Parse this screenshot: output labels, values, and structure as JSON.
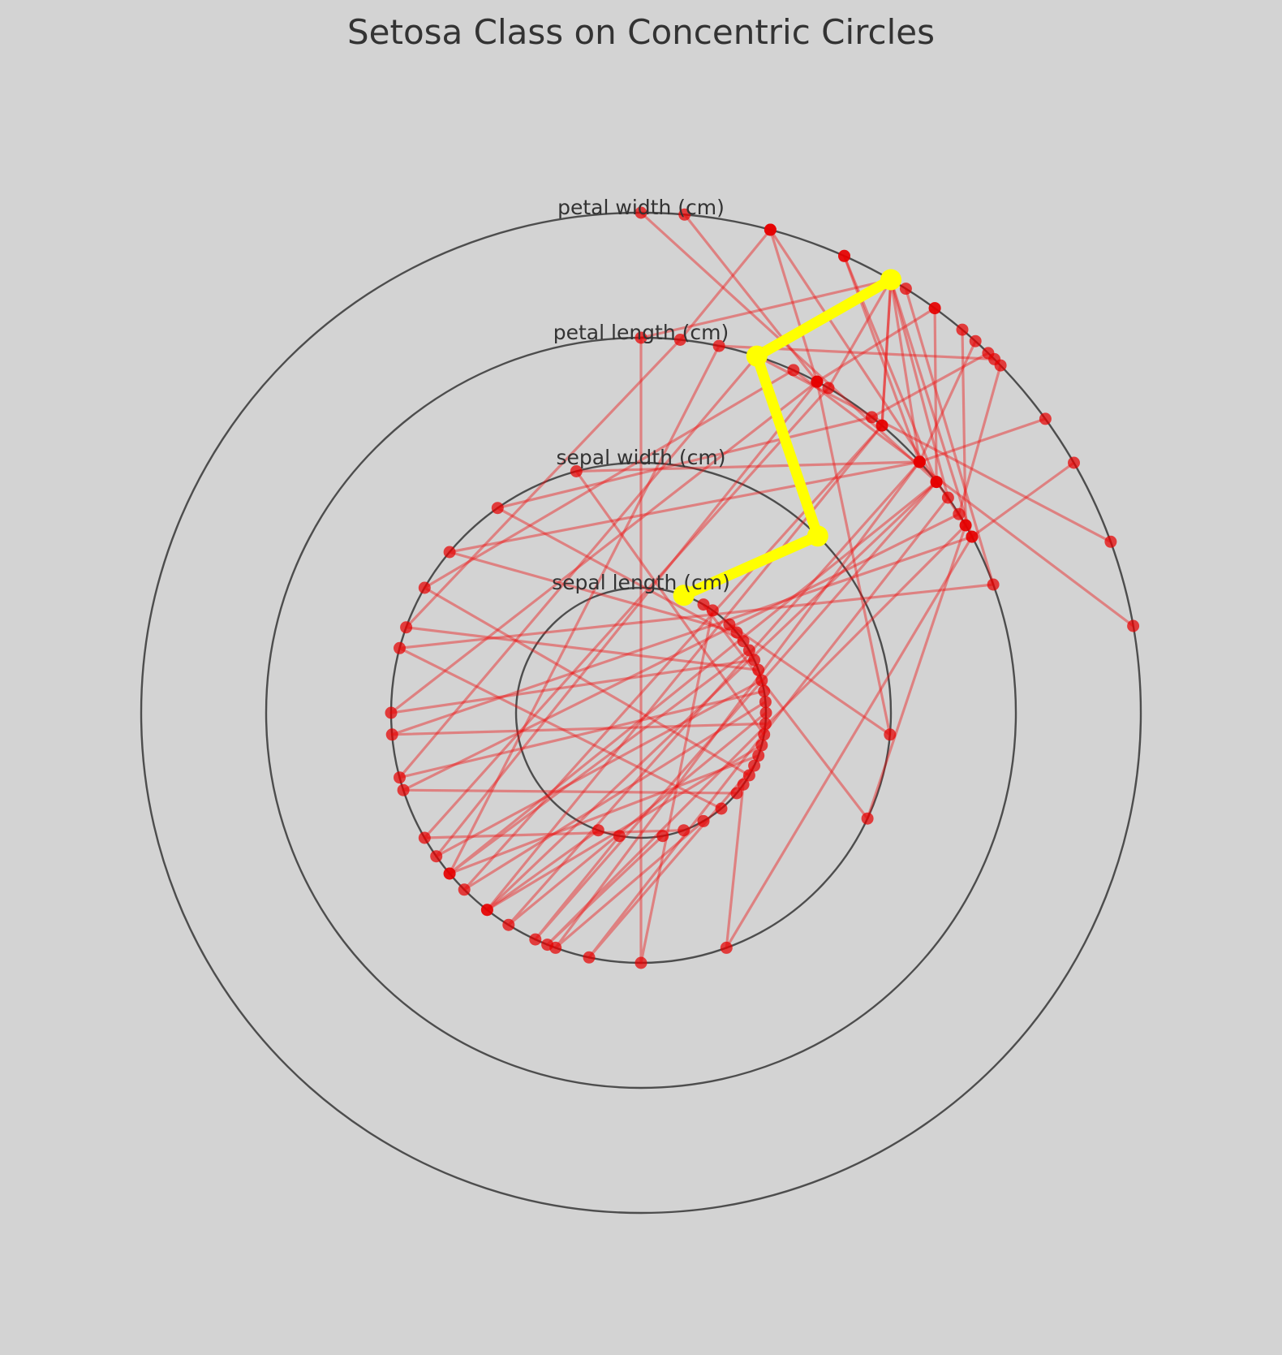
{
  "chart_data": {
    "type": "concentric-circles",
    "title": "Setosa Class on Concentric Circles",
    "circle_labels": [
      "sepal length (cm)",
      "sepal width (cm)",
      "petal length (cm)",
      "petal width (cm)"
    ],
    "angle_convention": "degrees clockwise from the top (12 o'clock)",
    "colors": {
      "background": "#d3d3d3",
      "circle": "#4d4d4d",
      "polyline": "#ee1111",
      "point": "#e60000",
      "highlight": "#ffff00",
      "text": "#333333"
    },
    "series": [
      {
        "angles": [
          30,
          115,
          60,
          40
        ]
      },
      {
        "angles": [
          45,
          95,
          28,
          15
        ]
      },
      {
        "angles": [
          60,
          230,
          52,
          24
        ]
      },
      {
        "angles": [
          75,
          235,
          28,
          36
        ]
      },
      {
        "angles": [
          90,
          212,
          48,
          54
        ]
      },
      {
        "angles": [
          105,
          218,
          52,
          36
        ]
      },
      {
        "angles": [
          115,
          192,
          55,
          30
        ]
      },
      {
        "angles": [
          130,
          252,
          58,
          46
        ]
      },
      {
        "angles": [
          150,
          200,
          48,
          42
        ]
      },
      {
        "angles": [
          160,
          240,
          30,
          30
        ]
      },
      {
        "angles": [
          170,
          202,
          60,
          15
        ]
      },
      {
        "angles": [
          95,
          265,
          62,
          60
        ]
      },
      {
        "angles": [
          120,
          300,
          24,
          80
        ]
      },
      {
        "angles": [
          140,
          285,
          70,
          32
        ]
      },
      {
        "angles": [
          190,
          205,
          52,
          0
        ]
      },
      {
        "angles": [
          200,
          218,
          40,
          30
        ]
      },
      {
        "angles": [
          80,
          255,
          18,
          70
        ]
      },
      {
        "angles": [
          55,
          325,
          38,
          44
        ]
      },
      {
        "angles": [
          100,
          345,
          48,
          24
        ]
      },
      {
        "angles": [
          65,
          270,
          28,
          5
        ]
      },
      {
        "angles": [
          110,
          230,
          12,
          45
        ]
      },
      {
        "angles": [
          35,
          180,
          0,
          30
        ]
      },
      {
        "angles": [
          125,
          160,
          62,
          30
        ]
      },
      {
        "angles": [
          85,
          225,
          40,
          30
        ]
      },
      {
        "angles": [
          70,
          290,
          6,
          15
        ]
      },
      {
        "angles": [
          50,
          310,
          48,
          30
        ]
      }
    ],
    "highlight": {
      "angles": [
        20,
        45,
        18,
        30
      ]
    }
  }
}
